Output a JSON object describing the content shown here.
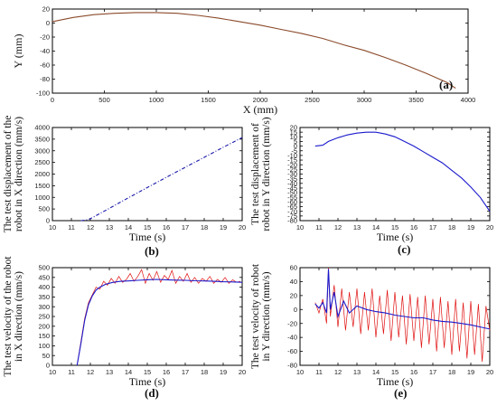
{
  "chart_data": [
    {
      "id": "a",
      "type": "line",
      "panel_label": "(a)",
      "xlabel": "X (mm)",
      "ylabel": "Y (mm)",
      "xlim": [
        0,
        4000
      ],
      "ylim": [
        -100,
        20
      ],
      "xticks": [
        0,
        500,
        1000,
        1500,
        2000,
        2500,
        3000,
        3500,
        4000
      ],
      "yticks": [
        20,
        0,
        -20,
        -40,
        -60,
        -80,
        -100
      ],
      "series": [
        {
          "color": "#8b4a2b",
          "x": [
            0,
            200,
            400,
            600,
            800,
            1000,
            1200,
            1400,
            1600,
            1800,
            2000,
            2200,
            2400,
            2600,
            2800,
            3000,
            3200,
            3400,
            3600,
            3800,
            3880
          ],
          "y": [
            2,
            8,
            12,
            14,
            15,
            15,
            14,
            11,
            7,
            2,
            -3,
            -9,
            -15,
            -22,
            -31,
            -39,
            -49,
            -60,
            -72,
            -85,
            -93
          ]
        }
      ]
    },
    {
      "id": "b",
      "type": "line",
      "panel_label": "(b)",
      "xlabel": "Time (s)",
      "ylabel": [
        "The test displacement of the",
        "robot in X direction (mm/s)"
      ],
      "xlim": [
        10,
        20
      ],
      "ylim": [
        0,
        4000
      ],
      "xticks": [
        10,
        11,
        12,
        13,
        14,
        15,
        16,
        17,
        18,
        19,
        20
      ],
      "yticks": [
        0,
        500,
        1000,
        1500,
        2000,
        2500,
        3000,
        3500,
        4000
      ],
      "series": [
        {
          "color": "#1a1aaa",
          "dashed": true,
          "x": [
            11.5,
            11.8,
            12.0,
            13,
            14,
            15,
            16,
            17,
            18,
            19,
            20
          ],
          "y": [
            0,
            30,
            80,
            530,
            980,
            1420,
            1860,
            2290,
            2720,
            3150,
            3570
          ]
        }
      ]
    },
    {
      "id": "c",
      "type": "line",
      "panel_label": "(c)",
      "xlabel": "Time (s)",
      "ylabel": [
        "The test displacement of",
        "robot in Y direction (mm/s)"
      ],
      "xlim": [
        10,
        20
      ],
      "ylim": [
        -80,
        20
      ],
      "xticks": [
        10,
        11,
        12,
        13,
        14,
        15,
        16,
        17,
        18,
        19,
        20
      ],
      "yticks": [
        20,
        15,
        10,
        5,
        0,
        -5,
        -10,
        -15,
        -20,
        -25,
        -30,
        -35,
        -40,
        -45,
        -50,
        -55,
        -60,
        -65,
        -70,
        -75,
        -80
      ],
      "series": [
        {
          "color": "#1a1acc",
          "x": [
            10.8,
            11.2,
            11.5,
            12,
            12.5,
            13,
            13.5,
            14,
            14.5,
            15,
            15.5,
            16,
            16.5,
            17,
            17.5,
            18,
            18.5,
            19,
            19.5,
            20
          ],
          "y": [
            0,
            1,
            5,
            9,
            12,
            14,
            15,
            15,
            13,
            10,
            5,
            0,
            -6,
            -12,
            -18,
            -26,
            -34,
            -44,
            -55,
            -70
          ]
        }
      ]
    },
    {
      "id": "d",
      "type": "line",
      "panel_label": "(d)",
      "xlabel": "Time (s)",
      "ylabel": [
        "The test velocity of the robot",
        "in X direction (mm/s)"
      ],
      "xlim": [
        10,
        20
      ],
      "ylim": [
        0,
        500
      ],
      "xticks": [
        10,
        11,
        12,
        13,
        14,
        15,
        16,
        17,
        18,
        19,
        20
      ],
      "yticks": [
        0,
        50,
        100,
        150,
        200,
        250,
        300,
        350,
        400,
        450,
        500
      ],
      "series": [
        {
          "color": "#e01010",
          "x": [
            11.3,
            11.5,
            11.7,
            11.9,
            12.1,
            12.3,
            12.5,
            12.7,
            12.9,
            13.1,
            13.3,
            13.5,
            13.7,
            13.9,
            14.1,
            14.3,
            14.5,
            14.7,
            14.9,
            15.1,
            15.3,
            15.5,
            15.7,
            15.9,
            16.1,
            16.3,
            16.5,
            16.7,
            16.9,
            17.1,
            17.3,
            17.5,
            17.7,
            17.9,
            18.1,
            18.3,
            18.5,
            18.7,
            18.9,
            19.1,
            19.3,
            19.5,
            19.7,
            19.9
          ],
          "y": [
            0,
            120,
            240,
            320,
            360,
            400,
            390,
            430,
            410,
            445,
            420,
            455,
            425,
            440,
            470,
            430,
            455,
            490,
            420,
            470,
            435,
            480,
            425,
            460,
            440,
            485,
            420,
            455,
            430,
            470,
            425,
            450,
            420,
            445,
            430,
            455,
            420,
            440,
            425,
            450,
            420,
            438,
            425,
            430
          ]
        },
        {
          "color": "#1a1acc",
          "x": [
            11.3,
            11.5,
            11.7,
            11.9,
            12.1,
            12.3,
            12.5,
            12.8,
            13.2,
            13.6,
            14,
            14.5,
            15,
            15.5,
            16,
            16.5,
            17,
            17.5,
            18,
            18.5,
            19,
            19.5,
            20
          ],
          "y": [
            0,
            110,
            230,
            310,
            355,
            385,
            400,
            415,
            425,
            430,
            432,
            435,
            438,
            440,
            438,
            436,
            435,
            433,
            432,
            430,
            428,
            427,
            425
          ]
        }
      ]
    },
    {
      "id": "e",
      "type": "line",
      "panel_label": "(e)",
      "xlabel": "Time (s)",
      "ylabel": [
        "The test velocity of robot",
        "in Y direction (mm/s)"
      ],
      "xlim": [
        10,
        20
      ],
      "ylim": [
        -80,
        60
      ],
      "xticks": [
        10,
        11,
        12,
        13,
        14,
        15,
        16,
        17,
        18,
        19,
        20
      ],
      "yticks": [
        60,
        40,
        20,
        0,
        -20,
        -40,
        -60,
        -80
      ],
      "series": [
        {
          "color": "#e01010",
          "x": [
            10.8,
            11.0,
            11.2,
            11.4,
            11.5,
            11.6,
            11.8,
            12.0,
            12.2,
            12.4,
            12.6,
            12.8,
            13.0,
            13.2,
            13.4,
            13.6,
            13.8,
            14.0,
            14.2,
            14.4,
            14.6,
            14.8,
            15.0,
            15.2,
            15.4,
            15.6,
            15.8,
            16.0,
            16.2,
            16.4,
            16.6,
            16.8,
            17.0,
            17.2,
            17.4,
            17.6,
            17.8,
            18.0,
            18.2,
            18.4,
            18.6,
            18.8,
            19.0,
            19.2,
            19.4,
            19.6,
            19.8,
            20.0
          ],
          "y": [
            10,
            -5,
            15,
            -20,
            60,
            -10,
            35,
            -25,
            30,
            -30,
            25,
            -25,
            30,
            -35,
            25,
            -30,
            30,
            -40,
            20,
            -35,
            28,
            -45,
            25,
            -40,
            20,
            -50,
            22,
            -45,
            18,
            -55,
            20,
            -50,
            15,
            -60,
            18,
            -55,
            12,
            -65,
            15,
            -60,
            10,
            -70,
            12,
            -65,
            8,
            -75,
            5,
            -30
          ]
        },
        {
          "color": "#1a1acc",
          "x": [
            10.8,
            11.0,
            11.2,
            11.4,
            11.5,
            11.6,
            11.8,
            12.0,
            12.3,
            12.6,
            13,
            13.5,
            14,
            14.5,
            15,
            15.5,
            16,
            16.5,
            17,
            17.5,
            18,
            18.5,
            19,
            19.5,
            20
          ],
          "y": [
            8,
            2,
            10,
            -5,
            58,
            0,
            25,
            -10,
            12,
            -5,
            5,
            0,
            -3,
            -5,
            -8,
            -10,
            -12,
            -12,
            -15,
            -17,
            -18,
            -20,
            -22,
            -25,
            -28
          ]
        }
      ]
    }
  ]
}
